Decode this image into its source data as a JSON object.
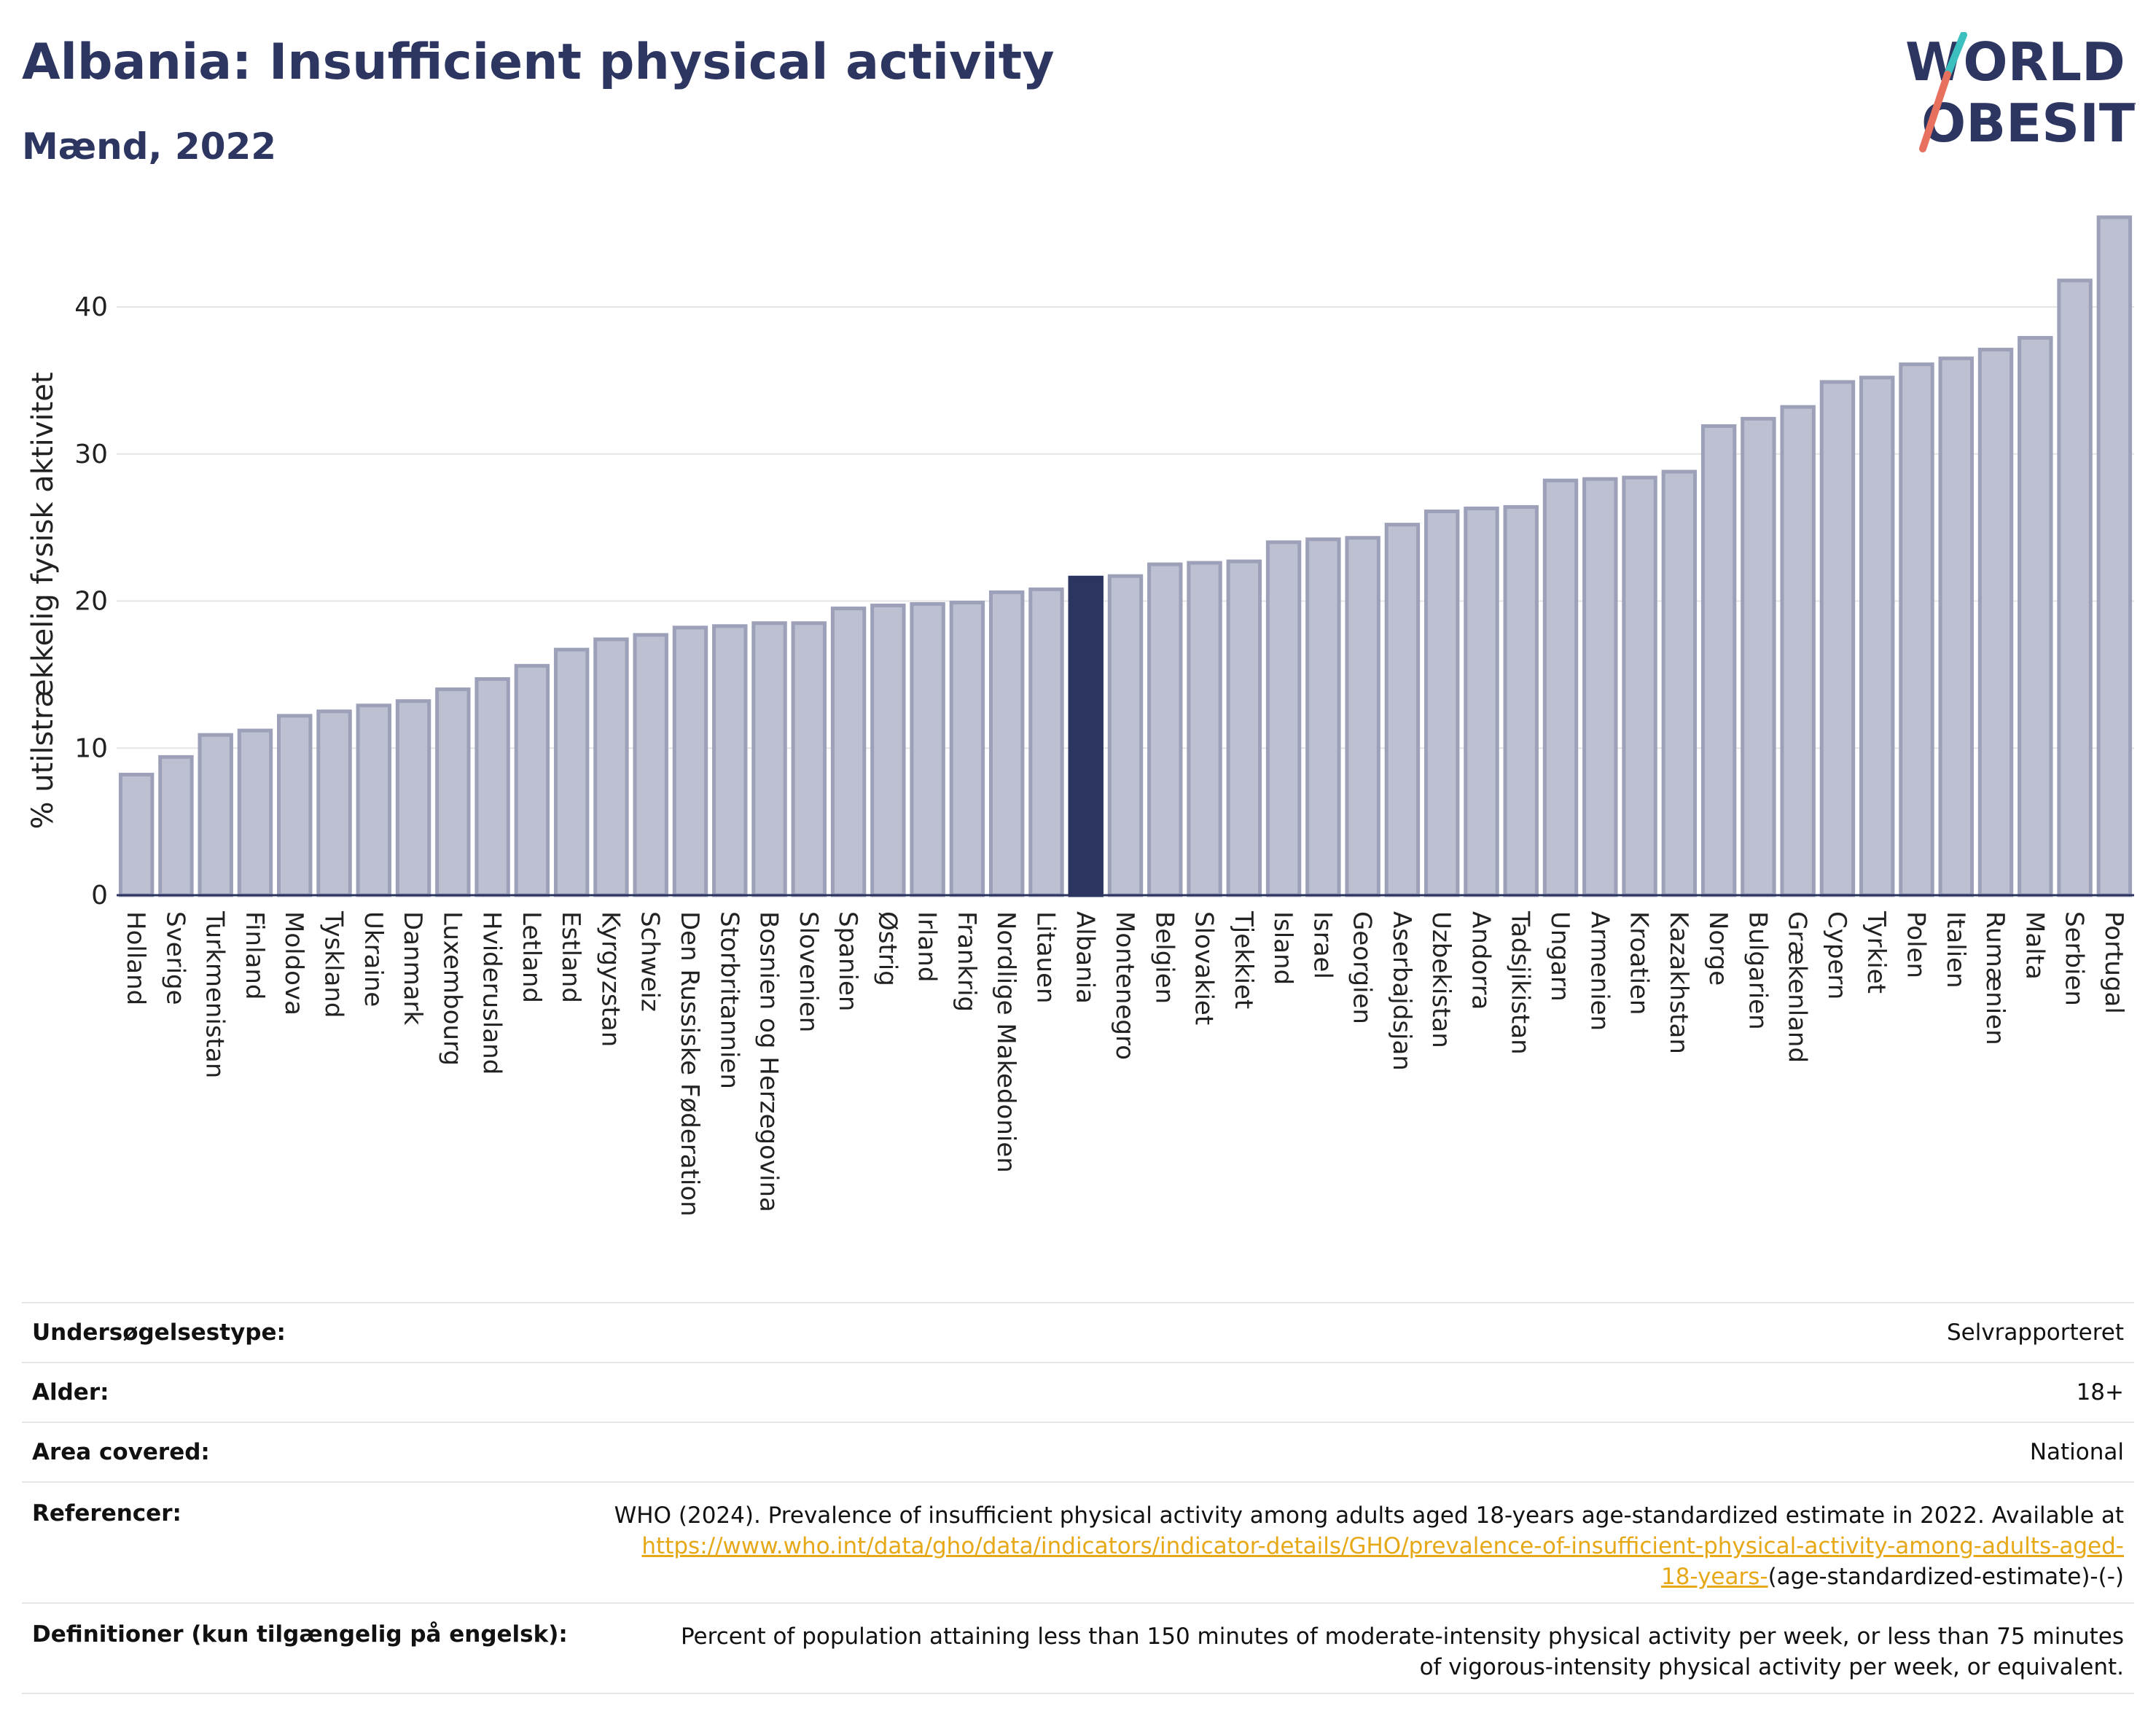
{
  "header": {
    "title": "Albania: Insufficient physical activity",
    "subtitle": "Mænd, 2022"
  },
  "logo": {
    "line1": "WORLD",
    "line2": "OBESITY"
  },
  "colors": {
    "highlight": "#2b3560",
    "bar": "#bcc0d0",
    "bar_border": "#9ca0b8",
    "grid": "#e5e5e5",
    "link": "#e6a817"
  },
  "chart_data": {
    "type": "bar",
    "ylabel": "% utilstrækkelig fysisk aktivitet",
    "xlabel": "",
    "ylim": [
      0,
      46
    ],
    "yticks": [
      0,
      10,
      20,
      30,
      40
    ],
    "grid": true,
    "highlight": "Albania",
    "categories": [
      "Holland",
      "Sverige",
      "Turkmenistan",
      "Finland",
      "Moldova",
      "Tyskland",
      "Ukraine",
      "Danmark",
      "Luxembourg",
      "Hviderusland",
      "Letland",
      "Estland",
      "Kyrgyzstan",
      "Schweiz",
      "Den Russiske Føderation",
      "Storbritannien",
      "Bosnien og Herzegovina",
      "Slovenien",
      "Spanien",
      "Østrig",
      "Irland",
      "Frankrig",
      "Nordlige Makedonien",
      "Litauen",
      "Albania",
      "Montenegro",
      "Belgien",
      "Slovakiet",
      "Tjekkiet",
      "Island",
      "Israel",
      "Georgien",
      "Aserbajdsjan",
      "Uzbekistan",
      "Andorra",
      "Tadsjikistan",
      "Ungarn",
      "Armenien",
      "Kroatien",
      "Kazakhstan",
      "Norge",
      "Bulgarien",
      "Grækenland",
      "Cypern",
      "Tyrkiet",
      "Polen",
      "Italien",
      "Rumænien",
      "Malta",
      "Serbien",
      "Portugal"
    ],
    "values": [
      8.2,
      9.4,
      10.9,
      11.2,
      12.2,
      12.5,
      12.9,
      13.2,
      14.0,
      14.7,
      15.6,
      16.7,
      17.4,
      17.7,
      18.2,
      18.3,
      18.5,
      18.5,
      19.5,
      19.7,
      19.8,
      19.9,
      20.6,
      20.8,
      21.6,
      21.7,
      22.5,
      22.6,
      22.7,
      24.0,
      24.2,
      24.3,
      25.2,
      26.1,
      26.3,
      26.4,
      28.2,
      28.3,
      28.4,
      28.8,
      31.9,
      32.4,
      33.2,
      34.9,
      35.2,
      36.1,
      36.5,
      37.1,
      37.9,
      41.8,
      46.1
    ]
  },
  "info": {
    "rows": [
      {
        "label": "Undersøgelsestype:",
        "value": "Selvrapporteret"
      },
      {
        "label": "Alder:",
        "value": "18+"
      },
      {
        "label": "Area covered:",
        "value": "National"
      }
    ],
    "reference": {
      "label": "Referencer:",
      "text": "WHO (2024). Prevalence of insufficient physical activity among adults aged 18-years age-standardized estimate in 2022. Available at",
      "link_line1": "https://www.who.int/data/gho/data/indicators/indicator-details/GHO/prevalence-of-insufficient-physical-activity-among-adults-aged-",
      "link_line2": "18-years-",
      "suffix": "(age-standardized-estimate)-(-)"
    },
    "definition": {
      "label": "Definitioner (kun tilgængelig på engelsk):",
      "text": "Percent of population attaining less than 150 minutes of moderate-intensity physical activity per week, or less than 75 minutes of vigorous-intensity physical activity per week, or equivalent."
    }
  }
}
